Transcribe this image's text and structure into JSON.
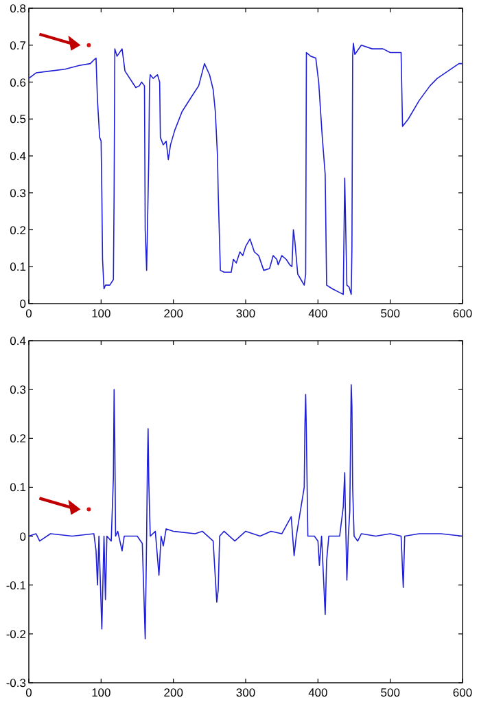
{
  "chart_data": [
    {
      "type": "line",
      "xlim": [
        0,
        600
      ],
      "ylim": [
        0,
        0.8
      ],
      "xticks": [
        0,
        100,
        200,
        300,
        400,
        500,
        600
      ],
      "yticks": [
        0,
        0.1,
        0.2,
        0.3,
        0.4,
        0.5,
        0.6,
        0.7,
        0.8
      ],
      "grid": false,
      "x": [
        0,
        10,
        30,
        50,
        70,
        85,
        90,
        93,
        95,
        98,
        100,
        101,
        102,
        104,
        106,
        112,
        117,
        118,
        119,
        122,
        129,
        133,
        143,
        148,
        153,
        156,
        160,
        161,
        163,
        166,
        167,
        168,
        172,
        178,
        181,
        182,
        186,
        190,
        193,
        196,
        202,
        212,
        225,
        235,
        243,
        250,
        255,
        258,
        261,
        262,
        265,
        270,
        280,
        283,
        287,
        292,
        296,
        300,
        306,
        312,
        318,
        325,
        333,
        338,
        343,
        345,
        350,
        356,
        361,
        364,
        366,
        368,
        372,
        378,
        381,
        383,
        384,
        390,
        397,
        401,
        406,
        410,
        412,
        420,
        430,
        435,
        437,
        440,
        443,
        446,
        447,
        448,
        449,
        451,
        460,
        475,
        490,
        500,
        515,
        517,
        525,
        540,
        555,
        565,
        580,
        595,
        600
      ],
      "series": [
        {
          "color": "#1f1fd6",
          "values": [
            0.61,
            0.625,
            0.63,
            0.635,
            0.645,
            0.65,
            0.66,
            0.665,
            0.55,
            0.45,
            0.44,
            0.3,
            0.12,
            0.04,
            0.05,
            0.05,
            0.065,
            0.3,
            0.69,
            0.67,
            0.69,
            0.63,
            0.6,
            0.585,
            0.59,
            0.6,
            0.59,
            0.2,
            0.09,
            0.4,
            0.6,
            0.62,
            0.61,
            0.62,
            0.6,
            0.45,
            0.43,
            0.44,
            0.39,
            0.43,
            0.47,
            0.52,
            0.56,
            0.59,
            0.65,
            0.62,
            0.58,
            0.52,
            0.4,
            0.3,
            0.09,
            0.085,
            0.085,
            0.12,
            0.11,
            0.14,
            0.13,
            0.155,
            0.175,
            0.14,
            0.13,
            0.09,
            0.095,
            0.13,
            0.12,
            0.105,
            0.13,
            0.12,
            0.105,
            0.1,
            0.2,
            0.17,
            0.08,
            0.06,
            0.05,
            0.08,
            0.68,
            0.67,
            0.665,
            0.6,
            0.45,
            0.35,
            0.05,
            0.04,
            0.03,
            0.025,
            0.34,
            0.05,
            0.045,
            0.025,
            0.15,
            0.67,
            0.705,
            0.675,
            0.7,
            0.69,
            0.69,
            0.68,
            0.68,
            0.48,
            0.5,
            0.55,
            0.59,
            0.61,
            0.63,
            0.65,
            0.65
          ]
        },
        {
          "type": "scatter",
          "color": "#e01010",
          "x": [
            83
          ],
          "values": [
            0.7
          ]
        }
      ]
    },
    {
      "type": "line",
      "xlim": [
        0,
        600
      ],
      "ylim": [
        -0.3,
        0.4
      ],
      "xticks": [
        0,
        100,
        200,
        300,
        400,
        500,
        600
      ],
      "yticks": [
        -0.3,
        -0.2,
        -0.1,
        0,
        0.1,
        0.2,
        0.3,
        0.4
      ],
      "grid": false,
      "x": [
        0,
        10,
        15,
        30,
        60,
        90,
        93,
        95,
        97,
        101,
        104,
        106,
        108,
        114,
        117,
        118,
        119,
        120,
        123,
        129,
        132,
        150,
        157,
        161,
        163,
        164,
        165,
        166,
        168,
        175,
        180,
        183,
        186,
        190,
        200,
        230,
        240,
        255,
        260,
        262,
        264,
        270,
        285,
        300,
        320,
        335,
        350,
        363,
        365,
        367,
        370,
        381,
        382,
        383,
        384,
        386,
        395,
        400,
        402,
        405,
        410,
        412,
        415,
        430,
        435,
        437,
        438,
        440,
        442,
        444,
        446,
        447,
        448,
        450,
        455,
        460,
        480,
        500,
        515,
        518,
        520,
        540,
        570,
        600
      ],
      "series": [
        {
          "color": "#1f1fd6",
          "values": [
            0,
            0.005,
            -0.01,
            0.005,
            0,
            0.005,
            -0.03,
            -0.1,
            0,
            -0.19,
            0,
            -0.13,
            0,
            -0.01,
            0.12,
            0.3,
            0.19,
            0,
            0.01,
            -0.03,
            0,
            0,
            -0.015,
            -0.21,
            0,
            0.14,
            0.22,
            0.11,
            0,
            0.01,
            -0.08,
            0,
            -0.02,
            0.015,
            0.01,
            0.005,
            0.01,
            -0.01,
            -0.135,
            -0.11,
            0,
            0.01,
            -0.01,
            0.01,
            0,
            0.01,
            0.005,
            0.04,
            0,
            -0.04,
            0,
            0.1,
            0.23,
            0.29,
            0.21,
            0,
            0,
            -0.01,
            -0.06,
            0,
            -0.16,
            -0.05,
            0,
            0,
            0.06,
            0.13,
            0.05,
            -0.09,
            0,
            0.05,
            0.31,
            0.265,
            0.1,
            0,
            -0.01,
            0.005,
            0,
            0.005,
            0,
            -0.105,
            0,
            0.005,
            0.005,
            0
          ]
        },
        {
          "type": "scatter",
          "color": "#e01010",
          "x": [
            83
          ],
          "values": [
            0.055
          ]
        }
      ]
    }
  ]
}
